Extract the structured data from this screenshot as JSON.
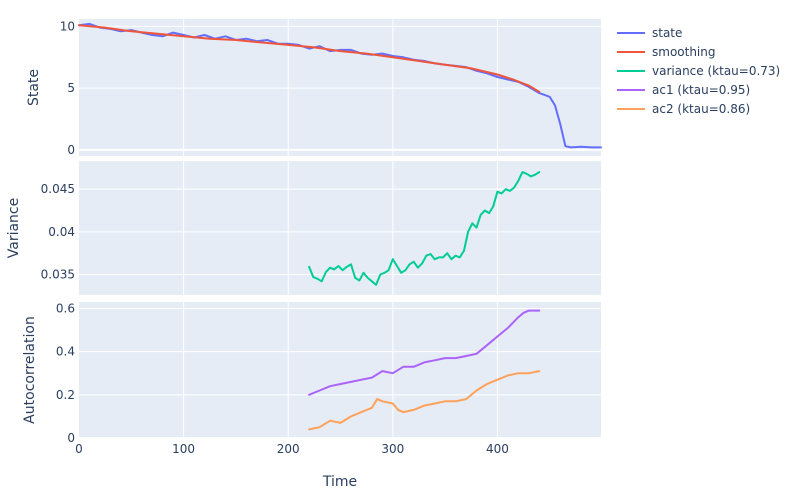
{
  "colors": {
    "plot_bg": "#e5ecf6",
    "grid": "#ffffff",
    "text": "#2a3f5f",
    "state": "#636efa",
    "smoothing": "#ef553b",
    "variance": "#00cc96",
    "ac1": "#ab63fa",
    "ac2": "#ffa15a"
  },
  "chart_data": {
    "type": "line",
    "xlabel": "Time",
    "xlim": [
      0,
      499
    ],
    "xticks": [
      0,
      100,
      200,
      300,
      400
    ],
    "legend_position": "right",
    "legend": [
      {
        "name": "state",
        "color_key": "state"
      },
      {
        "name": "smoothing",
        "color_key": "smoothing"
      },
      {
        "name": "variance (ktau=0.73)",
        "color_key": "variance"
      },
      {
        "name": "ac1 (ktau=0.95)",
        "color_key": "ac1"
      },
      {
        "name": "ac2 (ktau=0.86)",
        "color_key": "ac2"
      }
    ],
    "panels": [
      {
        "id": "state",
        "ylabel": "State",
        "ylim": [
          -0.5,
          10.6
        ],
        "yticks": [
          0,
          5,
          10
        ],
        "ytick_labels": [
          "0",
          "5",
          "10"
        ],
        "series": [
          {
            "name": "state",
            "color_key": "state",
            "x": [
              0,
              10,
              20,
              30,
              40,
              50,
              60,
              70,
              80,
              90,
              100,
              110,
              120,
              130,
              140,
              150,
              160,
              170,
              180,
              190,
              200,
              210,
              220,
              230,
              240,
              250,
              260,
              270,
              280,
              290,
              300,
              310,
              320,
              330,
              340,
              350,
              360,
              370,
              380,
              390,
              400,
              410,
              420,
              430,
              440,
              450,
              455,
              460,
              465,
              470,
              480,
              490,
              499
            ],
            "y": [
              10.1,
              10.2,
              9.9,
              9.8,
              9.6,
              9.7,
              9.5,
              9.3,
              9.2,
              9.5,
              9.3,
              9.1,
              9.3,
              9.0,
              9.2,
              8.9,
              9.0,
              8.8,
              8.9,
              8.6,
              8.6,
              8.5,
              8.2,
              8.4,
              8.0,
              8.1,
              8.1,
              7.8,
              7.7,
              7.8,
              7.6,
              7.5,
              7.3,
              7.2,
              7.0,
              6.9,
              6.8,
              6.7,
              6.4,
              6.2,
              5.9,
              5.7,
              5.5,
              5.1,
              4.6,
              4.3,
              3.6,
              2.1,
              0.3,
              0.2,
              0.25,
              0.2,
              0.2
            ]
          },
          {
            "name": "smoothing",
            "color_key": "smoothing",
            "x": [
              0,
              25,
              50,
              75,
              100,
              125,
              150,
              175,
              200,
              225,
              250,
              275,
              300,
              325,
              350,
              375,
              400,
              415,
              430,
              440
            ],
            "y": [
              10.1,
              9.9,
              9.6,
              9.4,
              9.2,
              9.0,
              8.9,
              8.7,
              8.5,
              8.3,
              8.0,
              7.8,
              7.5,
              7.2,
              6.9,
              6.6,
              6.1,
              5.7,
              5.2,
              4.7
            ]
          }
        ]
      },
      {
        "id": "variance",
        "ylabel": "Variance",
        "ylim": [
          0.0326,
          0.0483
        ],
        "yticks": [
          0.035,
          0.04,
          0.045
        ],
        "ytick_labels": [
          "0.035",
          "0.04",
          "0.045"
        ],
        "series": [
          {
            "name": "variance (ktau=0.73)",
            "color_key": "variance",
            "x": [
              220,
              224,
              228,
              232,
              236,
              240,
              244,
              248,
              252,
              256,
              260,
              264,
              268,
              272,
              276,
              280,
              284,
              288,
              292,
              296,
              300,
              304,
              308,
              312,
              316,
              320,
              324,
              328,
              332,
              336,
              340,
              344,
              348,
              352,
              356,
              360,
              364,
              368,
              372,
              376,
              380,
              384,
              388,
              392,
              396,
              400,
              404,
              408,
              412,
              416,
              420,
              424,
              428,
              432,
              436,
              440
            ],
            "y": [
              0.0359,
              0.0347,
              0.0345,
              0.0342,
              0.0353,
              0.0358,
              0.0356,
              0.036,
              0.0355,
              0.0359,
              0.0362,
              0.0346,
              0.0343,
              0.0352,
              0.0346,
              0.0342,
              0.0338,
              0.035,
              0.0352,
              0.0355,
              0.0368,
              0.036,
              0.0352,
              0.0355,
              0.0362,
              0.0365,
              0.0358,
              0.0363,
              0.0372,
              0.0374,
              0.0368,
              0.037,
              0.037,
              0.0375,
              0.0368,
              0.0372,
              0.037,
              0.0378,
              0.04,
              0.041,
              0.0405,
              0.042,
              0.0425,
              0.0422,
              0.043,
              0.0447,
              0.0445,
              0.045,
              0.0448,
              0.0452,
              0.046,
              0.047,
              0.0468,
              0.0465,
              0.0467,
              0.047
            ]
          }
        ]
      },
      {
        "id": "autocorrelation",
        "ylabel": "Autocorrelation",
        "ylim": [
          0,
          0.63
        ],
        "yticks": [
          0,
          0.2,
          0.4,
          0.6
        ],
        "ytick_labels": [
          "0",
          "0.2",
          "0.4",
          "0.6"
        ],
        "series": [
          {
            "name": "ac1 (ktau=0.95)",
            "color_key": "ac1",
            "x": [
              220,
              230,
              240,
              250,
              260,
              270,
              280,
              290,
              300,
              310,
              320,
              330,
              340,
              350,
              360,
              370,
              380,
              390,
              400,
              410,
              420,
              425,
              430,
              440
            ],
            "y": [
              0.2,
              0.22,
              0.24,
              0.25,
              0.26,
              0.27,
              0.28,
              0.31,
              0.3,
              0.33,
              0.33,
              0.35,
              0.36,
              0.37,
              0.37,
              0.38,
              0.39,
              0.43,
              0.47,
              0.51,
              0.56,
              0.58,
              0.59,
              0.59
            ]
          },
          {
            "name": "ac2 (ktau=0.86)",
            "color_key": "ac2",
            "x": [
              220,
              230,
              240,
              250,
              260,
              270,
              280,
              285,
              290,
              300,
              305,
              310,
              320,
              330,
              340,
              350,
              360,
              370,
              380,
              390,
              400,
              410,
              420,
              430,
              440
            ],
            "y": [
              0.04,
              0.05,
              0.08,
              0.07,
              0.1,
              0.12,
              0.14,
              0.18,
              0.17,
              0.16,
              0.13,
              0.12,
              0.13,
              0.15,
              0.16,
              0.17,
              0.17,
              0.18,
              0.22,
              0.25,
              0.27,
              0.29,
              0.3,
              0.3,
              0.31
            ]
          }
        ]
      }
    ]
  }
}
